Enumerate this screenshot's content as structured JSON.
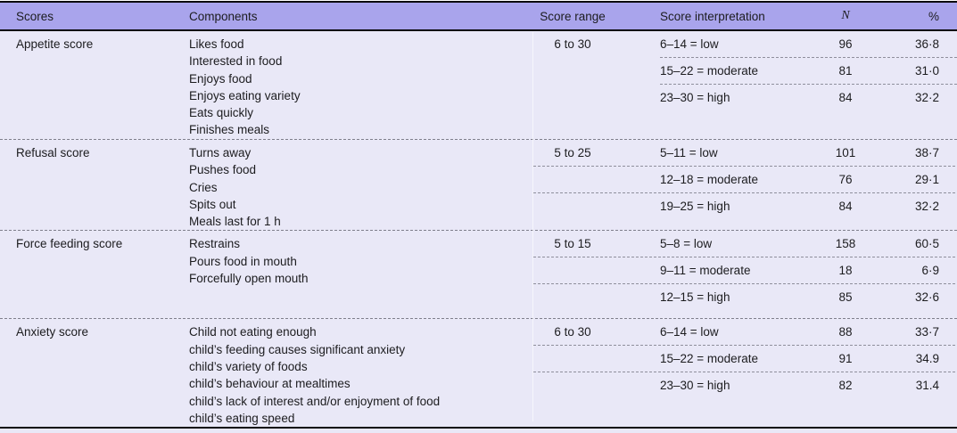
{
  "header": {
    "scores": "Scores",
    "components": "Components",
    "range": "Score range",
    "interpretation": "Score interpretation",
    "n": "N",
    "pct": "%"
  },
  "sections": [
    {
      "title": "Appetite score",
      "components": [
        "Likes food",
        "Interested in food",
        "Enjoys food",
        "Enjoys eating variety",
        "Eats quickly",
        "Finishes meals"
      ],
      "range": "6 to 30",
      "rows": [
        {
          "interp": "6–14 = low",
          "n": "96",
          "pct": "36·8"
        },
        {
          "interp": "15–22 = moderate",
          "n": "81",
          "pct": "31·0"
        },
        {
          "interp": "23–30 = high",
          "n": "84",
          "pct": "32·2"
        }
      ]
    },
    {
      "title": "Refusal score",
      "components": [
        "Turns away",
        "Pushes food",
        "Cries",
        "Spits out",
        "Meals last for 1 h"
      ],
      "range": "5 to 25",
      "rows": [
        {
          "interp": "5–11 = low",
          "n": "101",
          "pct": "38·7"
        },
        {
          "interp": "12–18 = moderate",
          "n": "76",
          "pct": "29·1"
        },
        {
          "interp": "19–25 = high",
          "n": "84",
          "pct": "32·2"
        }
      ]
    },
    {
      "title": "Force feeding score",
      "components": [
        "Restrains",
        "Pours food in mouth",
        "Forcefully open mouth"
      ],
      "range": "5 to 15",
      "rows": [
        {
          "interp": "5–8 = low",
          "n": "158",
          "pct": "60·5"
        },
        {
          "interp": "9–11 = moderate",
          "n": "18",
          "pct": "6·9"
        },
        {
          "interp": "12–15 = high",
          "n": "85",
          "pct": "32·6"
        }
      ]
    },
    {
      "title": "Anxiety score",
      "components": [
        "Child not eating enough",
        "child’s feeding causes significant anxiety",
        "child’s variety of foods",
        "child’s behaviour at mealtimes",
        "child’s lack of interest and/or enjoyment of food",
        "child’s eating speed"
      ],
      "range": "6 to 30",
      "rows": [
        {
          "interp": "6–14 = low",
          "n": "88",
          "pct": "33·7"
        },
        {
          "interp": "15–22 = moderate",
          "n": "91",
          "pct": "34.9"
        },
        {
          "interp": "23–30 = high",
          "n": "82",
          "pct": "31.4"
        }
      ]
    }
  ],
  "colors": {
    "header_bg": "#a9a4ec",
    "body_bg": "#e9e8f7",
    "rule": "#0a0a0a",
    "dash": "#8f8f9c"
  }
}
